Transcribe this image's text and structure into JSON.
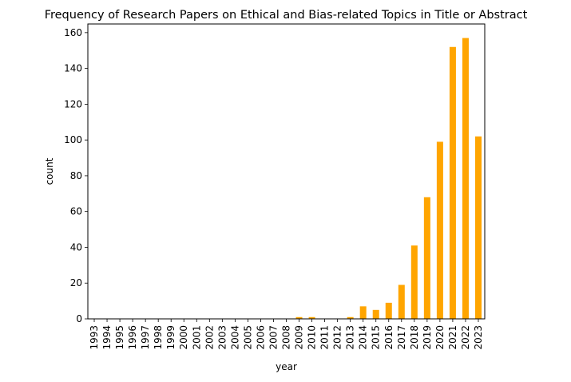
{
  "chart_data": {
    "type": "bar",
    "title": "Frequency of Research Papers on Ethical and Bias-related Topics in Title or Abstract",
    "xlabel": "year",
    "ylabel": "count",
    "categories": [
      "1993",
      "1994",
      "1995",
      "1996",
      "1997",
      "1998",
      "1999",
      "2000",
      "2001",
      "2002",
      "2003",
      "2004",
      "2005",
      "2006",
      "2007",
      "2008",
      "2009",
      "2010",
      "2011",
      "2012",
      "2013",
      "2014",
      "2015",
      "2016",
      "2017",
      "2018",
      "2019",
      "2020",
      "2021",
      "2022",
      "2023"
    ],
    "values": [
      0,
      0,
      0,
      0,
      0,
      0,
      0,
      0,
      0,
      0,
      0,
      0,
      0,
      0,
      0,
      0,
      1,
      1,
      0,
      0,
      1,
      7,
      5,
      9,
      19,
      41,
      68,
      99,
      152,
      157,
      102
    ],
    "ylim": [
      0,
      164.85
    ],
    "yticks": [
      0,
      20,
      40,
      60,
      80,
      100,
      120,
      140,
      160
    ],
    "bar_color": "#ffa500",
    "grid": false,
    "legend": "none"
  }
}
